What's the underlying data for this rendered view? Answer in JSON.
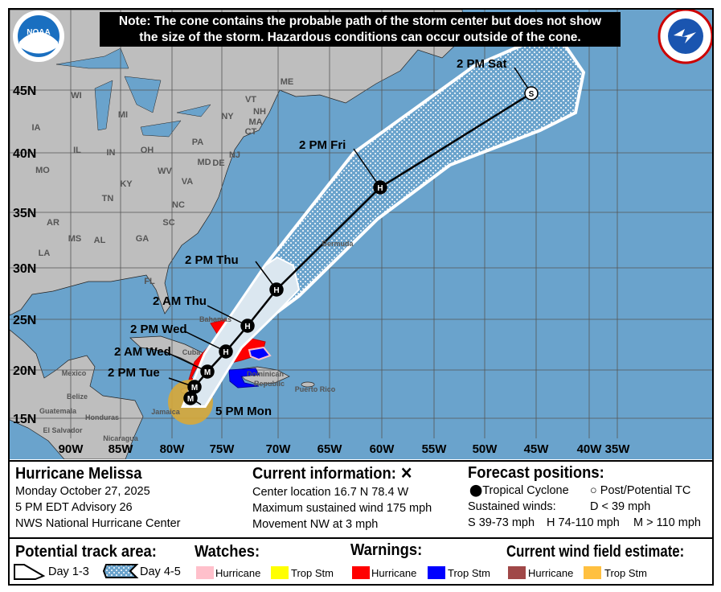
{
  "note": {
    "line1": "Note: The cone contains the probable path of the storm center but does not show",
    "line2": "the size of the storm. Hazardous conditions can occur outside of the cone."
  },
  "logos": {
    "left": "NOAA",
    "right": "NATIONAL WEATHER SERVICE"
  },
  "lat_labels": [
    "45N",
    "40N",
    "35N",
    "30N",
    "25N",
    "20N",
    "15N"
  ],
  "lon_labels": [
    "90W",
    "85W",
    "80W",
    "75W",
    "70W",
    "65W",
    "60W",
    "55W",
    "50W",
    "45W",
    "40W",
    "35W"
  ],
  "places": [
    "WI",
    "MI",
    "IA",
    "IL",
    "IN",
    "OH",
    "MO",
    "KY",
    "WV",
    "VA",
    "TN",
    "NC",
    "AR",
    "MS",
    "AL",
    "GA",
    "SC",
    "FL",
    "LA",
    "NY",
    "PA",
    "ME",
    "VT",
    "NH",
    "MA",
    "CT",
    "NJ",
    "MD",
    "DE",
    "Mexico",
    "Belize",
    "Guatemala",
    "Honduras",
    "El Salvador",
    "Nicaragua",
    "Cuba",
    "Bahamas",
    "Jamaica",
    "Dominican",
    "Republic",
    "Puerto Rico",
    "Bermuda"
  ],
  "track": [
    {
      "time": "5 PM Mon",
      "cat": "M"
    },
    {
      "time": "2 PM Tue",
      "cat": "M"
    },
    {
      "time": "2 AM Wed",
      "cat": "M"
    },
    {
      "time": "2 PM Wed",
      "cat": "H"
    },
    {
      "time": "2 AM Thu",
      "cat": "H"
    },
    {
      "time": "2 PM Thu",
      "cat": "H"
    },
    {
      "time": "2 PM Fri",
      "cat": "H"
    },
    {
      "time": "2 PM Sat",
      "cat": "S"
    }
  ],
  "colors": {
    "ocean": "#6aa3cc",
    "land": "#bebebe",
    "hurricane_warning": "#ff0000",
    "ts_warning": "#0000ff",
    "hurricane_watch": "#ffc0cb",
    "ts_watch": "#ffff00",
    "hurricane_wind": "#a04848",
    "ts_wind": "#ffc040"
  },
  "info": {
    "storm": "Hurricane Melissa",
    "date": "Monday October 27, 2025",
    "advisory": "5 PM EDT Advisory 26",
    "agency": "NWS National Hurricane Center",
    "current_title": "Current information:",
    "current_icon": "x-icon",
    "center": "Center location 16.7 N 78.4 W",
    "wind": "Maximum sustained wind 175 mph",
    "movement": "Movement NW at 3 mph",
    "forecast_title": "Forecast positions:",
    "tc": "Tropical Cyclone",
    "ptc": "Post/Potential TC",
    "sustained": "Sustained winds:",
    "d": "D < 39 mph",
    "s": "S 39-73 mph",
    "hh": "H 74-110 mph",
    "m": "M > 110 mph"
  },
  "legend": {
    "track_title": "Potential track area:",
    "day13": "Day 1-3",
    "day45": "Day 4-5",
    "watches": "Watches:",
    "warnings": "Warnings:",
    "wind_field": "Current wind field estimate:",
    "hurricane": "Hurricane",
    "trop_stm": "Trop Stm"
  }
}
